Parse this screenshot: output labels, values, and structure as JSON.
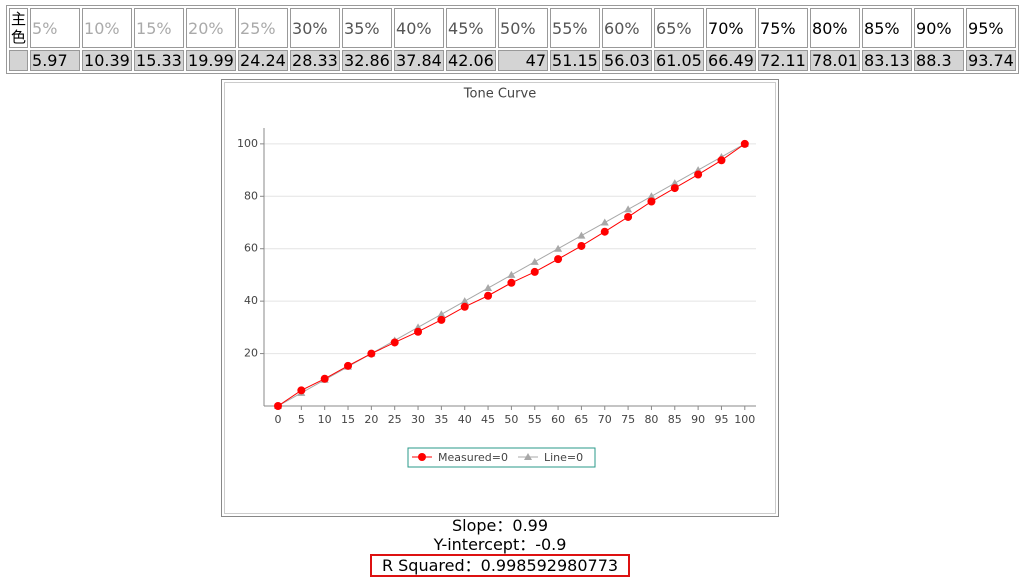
{
  "table": {
    "corner": "主色",
    "headers": [
      "5%",
      "10%",
      "15%",
      "20%",
      "25%",
      "30%",
      "35%",
      "40%",
      "45%",
      "50%",
      "55%",
      "60%",
      "65%",
      "70%",
      "75%",
      "80%",
      "85%",
      "90%",
      "95%"
    ],
    "values": [
      5.97,
      10.39,
      15.33,
      19.99,
      24.24,
      28.33,
      32.86,
      37.84,
      42.06,
      47,
      51.15,
      56.03,
      61.05,
      66.49,
      72.11,
      78.01,
      83.13,
      88.3,
      93.74
    ]
  },
  "chart_data": {
    "type": "line",
    "title": "Tone Curve",
    "x": [
      0,
      5,
      10,
      15,
      20,
      25,
      30,
      35,
      40,
      45,
      50,
      55,
      60,
      65,
      70,
      75,
      80,
      85,
      90,
      95,
      100
    ],
    "series": [
      {
        "name": "Measured=0",
        "color": "#ff0000",
        "values": [
          0,
          5.97,
          10.39,
          15.33,
          19.99,
          24.24,
          28.33,
          32.86,
          37.84,
          42.06,
          47,
          51.15,
          56.03,
          61.05,
          66.49,
          72.11,
          78.01,
          83.13,
          88.3,
          93.74,
          100
        ]
      },
      {
        "name": "Line=0",
        "color": "#a8a8a8",
        "values": [
          0,
          5,
          10,
          15,
          20,
          25,
          30,
          35,
          40,
          45,
          50,
          55,
          60,
          65,
          70,
          75,
          80,
          85,
          90,
          95,
          100
        ]
      }
    ],
    "xlim": [
      -3,
      102.4
    ],
    "ylim": [
      0,
      103
    ],
    "xticks": [
      0,
      5,
      10,
      15,
      20,
      25,
      30,
      35,
      40,
      45,
      50,
      55,
      60,
      65,
      70,
      75,
      80,
      85,
      90,
      95,
      100
    ],
    "yticks": [
      20,
      40,
      60,
      80,
      100
    ],
    "grid": true
  },
  "stats": [
    {
      "label": "Slope：",
      "value": 0.99
    },
    {
      "label": "Y-intercept：",
      "value": -0.9
    },
    {
      "label": "R Squared：",
      "value": 0.998592980773
    }
  ]
}
